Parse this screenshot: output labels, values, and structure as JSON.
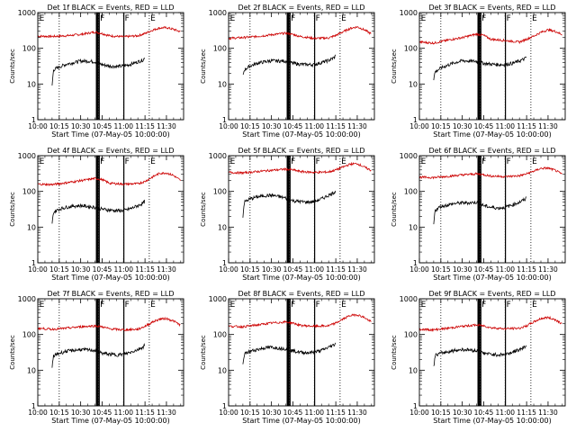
{
  "chart_data": {
    "type": "line",
    "layout": "3x3 panel grid",
    "shared": {
      "xlabel": "Start Time (07-May-05 10:00:00)",
      "ylabel": "Counts/sec",
      "x_tick_labels": [
        "10:00",
        "10:15",
        "10:30",
        "10:45",
        "11:00",
        "11:15",
        "11:30"
      ],
      "x_tick_minutes": [
        0,
        15,
        30,
        45,
        60,
        75,
        90
      ],
      "xlim_minutes": [
        0,
        102
      ],
      "y_scale": "log",
      "ylim": [
        1,
        1000
      ],
      "y_tick_labels": [
        "1",
        "10",
        "100",
        "1000"
      ],
      "y_tick_values": [
        1,
        10,
        100,
        1000
      ],
      "series_colors": {
        "events": "#000000",
        "lld": "#cc0000"
      },
      "dotted_verticals_minutes": [
        15,
        42.5,
        60,
        78
      ],
      "solid_verticals_minutes": [
        41,
        41.6,
        42.2,
        43,
        60.2
      ],
      "flag_labels": [
        {
          "text": "E",
          "minute": 1
        },
        {
          "text": "F",
          "minute": 43.5
        },
        {
          "text": "F",
          "minute": 60.8
        },
        {
          "text": "E",
          "minute": 78.8
        }
      ]
    },
    "panels": [
      {
        "title": "Det 1f BLACK = Events, RED = LLD",
        "series": [
          {
            "key": "lld",
            "x": [
              0,
              10,
              20,
              30,
              40,
              45,
              50,
              60,
              70,
              75,
              80,
              85,
              90,
              95,
              100
            ],
            "values": [
              220,
              215,
              225,
              245,
              285,
              260,
              225,
              210,
              225,
              260,
              320,
              370,
              380,
              340,
              290
            ]
          },
          {
            "key": "events",
            "x": [
              10,
              11,
              15,
              20,
              25,
              30,
              35,
              40,
              45,
              50,
              55,
              60,
              65,
              70,
              74,
              75
            ],
            "values": [
              9,
              25,
              30,
              36,
              40,
              44,
              44,
              42,
              35,
              32,
              31,
              32,
              36,
              42,
              48,
              58
            ]
          }
        ]
      },
      {
        "title": "Det 2f BLACK = Events, RED = LLD",
        "series": [
          {
            "key": "lld",
            "x": [
              0,
              10,
              20,
              30,
              40,
              45,
              50,
              60,
              70,
              75,
              80,
              85,
              90,
              95,
              100
            ],
            "values": [
              190,
              200,
              215,
              240,
              265,
              245,
              215,
              190,
              195,
              230,
              290,
              360,
              400,
              330,
              250
            ]
          },
          {
            "key": "events",
            "x": [
              10,
              11,
              15,
              20,
              25,
              30,
              35,
              40,
              45,
              50,
              55,
              60,
              65,
              70,
              74,
              75
            ],
            "values": [
              17,
              25,
              32,
              38,
              42,
              45,
              44,
              44,
              38,
              36,
              35,
              35,
              40,
              46,
              55,
              65
            ]
          }
        ]
      },
      {
        "title": "Det 3f BLACK = Events, RED = LLD",
        "series": [
          {
            "key": "lld",
            "x": [
              0,
              10,
              20,
              30,
              40,
              45,
              50,
              60,
              70,
              75,
              80,
              85,
              90,
              95,
              100
            ],
            "values": [
              150,
              140,
              170,
              200,
              250,
              230,
              180,
              165,
              150,
              180,
              220,
              280,
              330,
              300,
              240
            ]
          },
          {
            "key": "events",
            "x": [
              10,
              11,
              15,
              20,
              25,
              30,
              35,
              40,
              45,
              50,
              55,
              60,
              65,
              70,
              74,
              75
            ],
            "values": [
              14,
              22,
              28,
              34,
              40,
              45,
              44,
              43,
              38,
              36,
              35,
              35,
              38,
              44,
              52,
              60
            ]
          }
        ]
      },
      {
        "title": "Det 4f BLACK = Events, RED = LLD",
        "series": [
          {
            "key": "lld",
            "x": [
              0,
              10,
              20,
              30,
              40,
              45,
              50,
              60,
              70,
              75,
              80,
              85,
              90,
              95,
              100
            ],
            "values": [
              160,
              155,
              175,
              200,
              230,
              215,
              170,
              160,
              165,
              190,
              250,
              320,
              330,
              280,
              200
            ]
          },
          {
            "key": "events",
            "x": [
              10,
              11,
              15,
              20,
              25,
              30,
              35,
              40,
              45,
              50,
              55,
              60,
              65,
              70,
              74,
              75
            ],
            "values": [
              12,
              26,
              32,
              36,
              39,
              40,
              38,
              36,
              32,
              30,
              29,
              29,
              33,
              40,
              48,
              55
            ]
          }
        ]
      },
      {
        "title": "Det 5f BLACK = Events, RED = LLD",
        "series": [
          {
            "key": "lld",
            "x": [
              0,
              10,
              20,
              30,
              40,
              45,
              50,
              60,
              70,
              75,
              80,
              85,
              90,
              95,
              100
            ],
            "values": [
              340,
              330,
              360,
              390,
              420,
              400,
              360,
              340,
              350,
              400,
              480,
              580,
              600,
              480,
              380
            ]
          },
          {
            "key": "events",
            "x": [
              10,
              11,
              15,
              20,
              25,
              30,
              35,
              40,
              45,
              50,
              55,
              60,
              65,
              70,
              74,
              75
            ],
            "values": [
              20,
              50,
              62,
              70,
              76,
              78,
              72,
              65,
              55,
              52,
              50,
              52,
              62,
              78,
              95,
              112
            ]
          }
        ]
      },
      {
        "title": "Det 6f BLACK = Events, RED = LLD",
        "series": [
          {
            "key": "lld",
            "x": [
              0,
              10,
              20,
              30,
              40,
              45,
              50,
              60,
              70,
              75,
              80,
              85,
              90,
              95,
              100
            ],
            "values": [
              250,
              245,
              265,
              290,
              310,
              295,
              270,
              260,
              275,
              310,
              370,
              440,
              450,
              390,
              300
            ]
          },
          {
            "key": "events",
            "x": [
              10,
              11,
              15,
              20,
              25,
              30,
              35,
              40,
              45,
              50,
              55,
              60,
              65,
              70,
              74,
              75
            ],
            "values": [
              12,
              30,
              38,
              42,
              46,
              48,
              48,
              50,
              40,
              36,
              34,
              36,
              42,
              50,
              60,
              70
            ]
          }
        ]
      },
      {
        "title": "Det 7f BLACK = Events, RED = LLD",
        "series": [
          {
            "key": "lld",
            "x": [
              0,
              10,
              20,
              30,
              40,
              45,
              50,
              60,
              70,
              75,
              80,
              85,
              90,
              95,
              100
            ],
            "values": [
              150,
              140,
              150,
              165,
              175,
              165,
              145,
              135,
              140,
              170,
              220,
              270,
              280,
              240,
              180
            ]
          },
          {
            "key": "events",
            "x": [
              10,
              11,
              15,
              20,
              25,
              30,
              35,
              40,
              45,
              50,
              55,
              60,
              65,
              70,
              74,
              75
            ],
            "values": [
              12,
              25,
              30,
              34,
              36,
              38,
              37,
              36,
              30,
              28,
              27,
              28,
              32,
              38,
              46,
              55
            ]
          }
        ]
      },
      {
        "title": "Det 8f BLACK = Events, RED = LLD",
        "series": [
          {
            "key": "lld",
            "x": [
              0,
              10,
              20,
              30,
              40,
              45,
              50,
              60,
              70,
              75,
              80,
              85,
              90,
              95,
              100
            ],
            "values": [
              170,
              165,
              185,
              210,
              225,
              210,
              180,
              170,
              175,
              210,
              270,
              340,
              360,
              300,
              220
            ]
          },
          {
            "key": "events",
            "x": [
              10,
              11,
              15,
              20,
              25,
              30,
              35,
              40,
              45,
              50,
              55,
              60,
              65,
              70,
              74,
              75
            ],
            "values": [
              14,
              28,
              34,
              38,
              42,
              44,
              42,
              40,
              35,
              32,
              31,
              32,
              36,
              44,
              52,
              62
            ]
          }
        ]
      },
      {
        "title": "Det 9f BLACK = Events, RED = LLD",
        "series": [
          {
            "key": "lld",
            "x": [
              0,
              10,
              20,
              30,
              40,
              45,
              50,
              60,
              70,
              75,
              80,
              85,
              90,
              95,
              100
            ],
            "values": [
              140,
              135,
              150,
              170,
              185,
              175,
              155,
              145,
              150,
              175,
              225,
              280,
              300,
              260,
              200
            ]
          },
          {
            "key": "events",
            "x": [
              10,
              11,
              15,
              20,
              25,
              30,
              35,
              40,
              45,
              50,
              55,
              60,
              65,
              70,
              74,
              75
            ],
            "values": [
              12,
              26,
              30,
              33,
              36,
              38,
              37,
              35,
              30,
              28,
              27,
              28,
              32,
              38,
              46,
              52
            ]
          }
        ]
      }
    ]
  }
}
